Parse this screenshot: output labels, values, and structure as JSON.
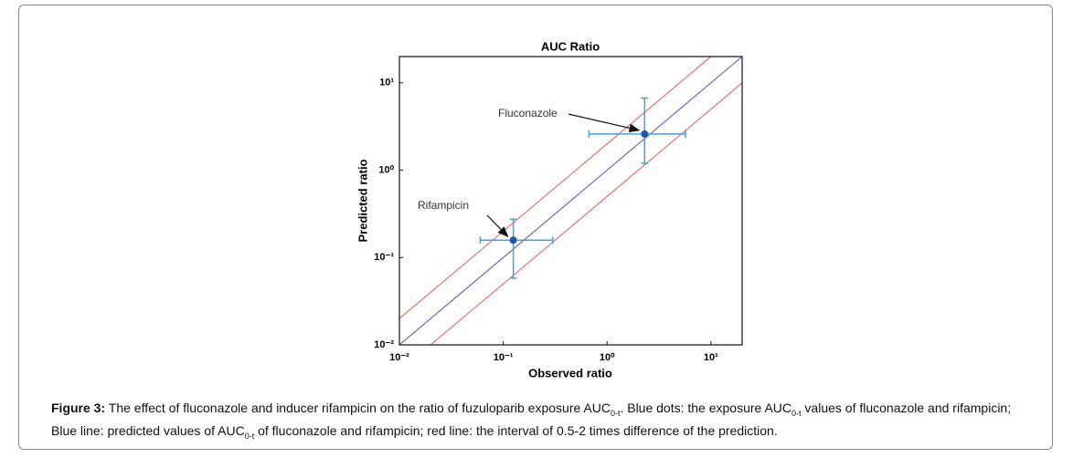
{
  "chart_data": {
    "type": "scatter",
    "title": "AUC Ratio",
    "x_label": "Observed ratio",
    "y_label": "Predicted ratio",
    "log_scale": true,
    "xlim": [
      0.01,
      20
    ],
    "ylim": [
      0.01,
      20
    ],
    "xticks": [
      {
        "value": 0.01,
        "label": "10⁻²"
      },
      {
        "value": 0.1,
        "label": "10⁻¹"
      },
      {
        "value": 1,
        "label": "10⁰"
      },
      {
        "value": 10,
        "label": "10¹"
      }
    ],
    "yticks": [
      {
        "value": 0.01,
        "label": "10⁻²"
      },
      {
        "value": 0.1,
        "label": "10⁻¹"
      },
      {
        "value": 1,
        "label": "10⁰"
      },
      {
        "value": 10,
        "label": "10¹"
      }
    ],
    "point_color": "#2355a8",
    "error_color": "#4a9fd8",
    "points": [
      {
        "label": "Fluconazole",
        "x": 2.3,
        "y": 2.6,
        "x_range": [
          0.67,
          5.7
        ],
        "y_range": [
          1.2,
          6.7
        ]
      },
      {
        "label": "Rifampicin",
        "x": 0.125,
        "y": 0.158,
        "x_range": [
          0.06,
          0.3
        ],
        "y_range": [
          0.058,
          0.275
        ]
      }
    ],
    "reference_lines": [
      {
        "slope": 1,
        "color": "#6a6ac0"
      },
      {
        "slope": 2,
        "color": "#e87070"
      },
      {
        "slope": 0.5,
        "color": "#e87070"
      }
    ]
  },
  "caption": {
    "label": "Figure 3:",
    "parts": [
      "The effect of fluconazole and inducer rifampicin on the ratio of fuzuloparib exposure AUC",
      "0-t",
      ". Blue dots: the exposure AUC",
      "0-t",
      " values of fluconazole and rifampicin; Blue line: predicted values of AUC",
      "0-t",
      " of fluconazole and rifampicin; red line: the interval of 0.5-2 times difference of the prediction."
    ]
  }
}
